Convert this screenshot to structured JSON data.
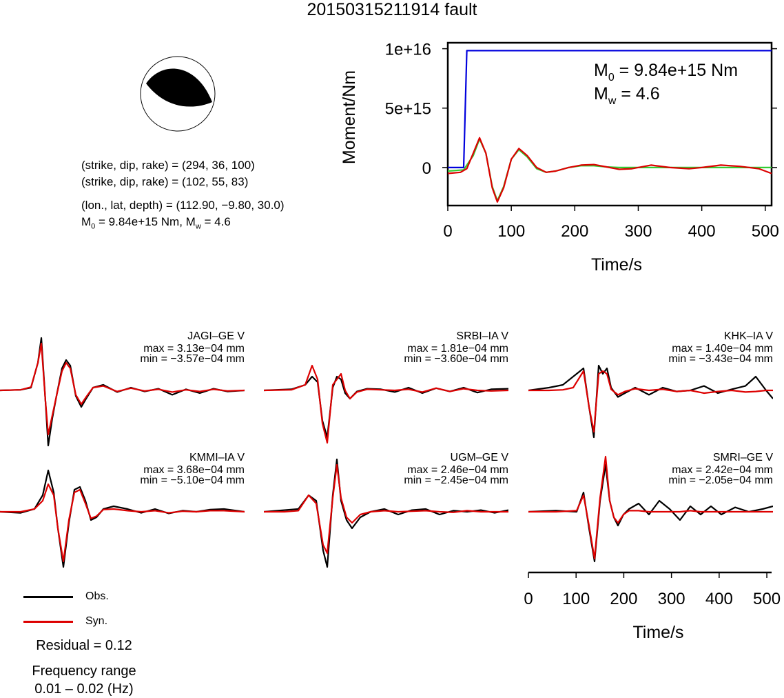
{
  "title": "20150315211914 fault",
  "mechanism": {
    "line1": "(strike, dip, rake) = (294, 36, 100)",
    "line2": "(strike, dip, rake) = (102, 55, 83)",
    "line3": "(lon., lat, depth) = (112.90, −9.80, 30.0)",
    "m0_prefix": "M",
    "m0_sub": "0",
    "m0_rest": " = 9.84e+15 Nm, M",
    "mw_sub": "w",
    "mw_rest": " = 4.6"
  },
  "chart_data": [
    {
      "type": "line",
      "title": "",
      "xlabel": "Time/s",
      "ylabel": "Moment/Nm",
      "xlim": [
        0,
        510
      ],
      "ylim": [
        -3200000000000000.0,
        1.05e+16
      ],
      "xticks": [
        0,
        100,
        200,
        300,
        400,
        500
      ],
      "xtick_labels": [
        "0",
        "100",
        "200",
        "300",
        "400",
        "500"
      ],
      "yticks": [
        0,
        5000000000000000.0,
        1e+16
      ],
      "ytick_labels": [
        "0",
        "5e+15",
        "1e+16"
      ],
      "annotation": {
        "m0_label": "M",
        "m0_sub": "0",
        "m0_value": " = 9.84e+15 Nm",
        "mw_label": "M",
        "mw_sub": "w",
        "mw_value": " = 4.6"
      },
      "series": [
        {
          "color": "#0000dd",
          "x": [
            0,
            25,
            30,
            510
          ],
          "y": [
            0,
            0,
            9840000000000000.0,
            9840000000000000.0
          ]
        },
        {
          "color": "#33cc33",
          "x": [
            0,
            25,
            40,
            50,
            60,
            70,
            78,
            88,
            100,
            112,
            125,
            140,
            155,
            170,
            190,
            210,
            230,
            250,
            270,
            300,
            350,
            400,
            450,
            510
          ],
          "y": [
            -300000000000000.0,
            -200000000000000.0,
            1000000000000000.0,
            2400000000000000.0,
            1200000000000000.0,
            -1600000000000000.0,
            -2800000000000000.0,
            -1600000000000000.0,
            700000000000000.0,
            1500000000000000.0,
            900000000000000.0,
            -100000000000000.0,
            -400000000000000.0,
            -300000000000000.0,
            0,
            150000000000000.0,
            150000000000000.0,
            50000000000000.0,
            0,
            0,
            0,
            0,
            0,
            0
          ]
        },
        {
          "color": "#dd0000",
          "x": [
            0,
            20,
            30,
            40,
            50,
            60,
            70,
            78,
            88,
            100,
            112,
            125,
            140,
            155,
            170,
            190,
            210,
            230,
            250,
            270,
            290,
            320,
            350,
            380,
            400,
            430,
            460,
            490,
            510
          ],
          "y": [
            -500000000000000.0,
            -400000000000000.0,
            -100000000000000.0,
            1200000000000000.0,
            2500000000000000.0,
            1200000000000000.0,
            -1700000000000000.0,
            -2900000000000000.0,
            -1700000000000000.0,
            700000000000000.0,
            1600000000000000.0,
            1000000000000000.0,
            0,
            -400000000000000.0,
            -300000000000000.0,
            0,
            200000000000000.0,
            250000000000000.0,
            50000000000000.0,
            -150000000000000.0,
            -100000000000000.0,
            200000000000000.0,
            0,
            -100000000000000.0,
            0,
            200000000000000.0,
            100000000000000.0,
            -100000000000000.0,
            -500000000000000.0
          ]
        }
      ]
    },
    {
      "type": "line",
      "title": "",
      "xlabel": "Time/s",
      "xlim": [
        0,
        510
      ],
      "xticks": [
        0,
        100,
        200,
        300,
        400,
        500
      ],
      "xtick_labels": [
        "0",
        "100",
        "200",
        "300",
        "400",
        "500"
      ],
      "legend": [
        {
          "name": "Obs.",
          "color": "#000000"
        },
        {
          "name": "Syn.",
          "color": "#dd0000"
        }
      ],
      "residual": "Residual = 0.12",
      "frequency_line1": "Frequency range",
      "frequency_line2": "0.01 – 0.02 (Hz)",
      "stations": [
        {
          "label": "JAGI–GE V",
          "max": "max = 3.13e−04 mm",
          "min": "min = −3.57e−04 mm",
          "obs": {
            "x": [
              0,
              30,
              45,
              55,
              60,
              66,
              70,
              76,
              82,
              90,
              96,
              102,
              110,
              118,
              125,
              135,
              150,
              170,
              190,
              210,
              230,
              250,
              270,
              290,
              310,
              330,
              355
            ],
            "y": [
              0,
              0.01,
              0.05,
              0.5,
              0.95,
              -0.2,
              -1.0,
              -0.5,
              -0.1,
              0.4,
              0.55,
              0.45,
              -0.1,
              -0.3,
              -0.15,
              0.05,
              0.1,
              -0.03,
              0.05,
              -0.02,
              0.03,
              -0.08,
              0.02,
              -0.05,
              0.03,
              -0.02,
              0
            ]
          },
          "syn": {
            "x": [
              0,
              30,
              45,
              55,
              60,
              66,
              70,
              76,
              82,
              90,
              96,
              102,
              110,
              118,
              125,
              135,
              150,
              170,
              190,
              210,
              230,
              250,
              270,
              290,
              310,
              330,
              355
            ],
            "y": [
              0,
              0.01,
              0.06,
              0.5,
              0.85,
              -0.2,
              -0.8,
              -0.45,
              -0.1,
              0.35,
              0.5,
              0.4,
              -0.08,
              -0.25,
              -0.12,
              0.05,
              0.08,
              -0.02,
              0.04,
              -0.01,
              0.02,
              -0.03,
              0.01,
              -0.02,
              0.02,
              -0.01,
              0
            ]
          }
        },
        {
          "label": "SRBI–IA V",
          "max": "max = 1.81e−04 mm",
          "min": "min = −3.60e−04 mm",
          "obs": {
            "x": [
              0,
              40,
              60,
              70,
              78,
              85,
              92,
              100,
              106,
              112,
              118,
              125,
              135,
              150,
              170,
              190,
              210,
              230,
              250,
              270,
              290,
              310,
              330,
              355
            ],
            "y": [
              0,
              0.02,
              0.1,
              0.25,
              0.15,
              -0.55,
              -0.85,
              0.05,
              0.25,
              0.2,
              -0.05,
              -0.15,
              -0.02,
              0.03,
              0.02,
              -0.03,
              0.05,
              -0.05,
              0.04,
              -0.02,
              0.05,
              -0.04,
              0.02,
              0.03
            ]
          },
          "syn": {
            "x": [
              0,
              40,
              60,
              70,
              78,
              85,
              92,
              100,
              106,
              112,
              118,
              125,
              135,
              150,
              170,
              190,
              210,
              230,
              250,
              270,
              290,
              310,
              330,
              355
            ],
            "y": [
              0,
              0.01,
              0.1,
              0.45,
              0.2,
              -0.6,
              -0.95,
              0.1,
              0.2,
              0.3,
              0.0,
              -0.15,
              -0.03,
              0.02,
              0.01,
              0.0,
              0.02,
              -0.03,
              0.04,
              -0.02,
              0.03,
              0.0,
              -0.01,
              0
            ]
          }
        },
        {
          "label": "KHK–IA V",
          "max": "max = 1.40e−04 mm",
          "min": "min = −3.43e−04 mm",
          "obs": {
            "x": [
              0,
              30,
              50,
              65,
              80,
              88,
              95,
              102,
              108,
              114,
              120,
              130,
              140,
              155,
              175,
              195,
              215,
              235,
              255,
              275,
              295,
              315,
              330,
              345,
              355
            ],
            "y": [
              0,
              0.05,
              0.1,
              0.25,
              0.4,
              -0.3,
              -0.85,
              0.45,
              0.3,
              0.4,
              0.05,
              -0.12,
              -0.05,
              0.05,
              -0.08,
              0.05,
              -0.02,
              0.0,
              0.08,
              -0.05,
              0.02,
              0.08,
              0.25,
              0.0,
              -0.15
            ]
          },
          "syn": {
            "x": [
              0,
              30,
              50,
              65,
              80,
              88,
              95,
              102,
              108,
              114,
              120,
              130,
              140,
              155,
              175,
              195,
              215,
              235,
              255,
              275,
              295,
              315,
              330,
              345,
              355
            ],
            "y": [
              0,
              0.0,
              0.01,
              0.05,
              0.35,
              -0.3,
              -0.75,
              0.3,
              0.35,
              0.3,
              0.02,
              -0.08,
              -0.02,
              0.03,
              0.0,
              0.02,
              -0.02,
              0.0,
              -0.05,
              -0.02,
              0.0,
              -0.03,
              -0.02,
              0.0,
              0
            ]
          }
        },
        {
          "label": "KMMI–IA V",
          "max": "max = 3.68e−04 mm",
          "min": "min = −5.10e−04 mm",
          "obs": {
            "x": [
              0,
              30,
              50,
              62,
              70,
              78,
              84,
              92,
              100,
              108,
              116,
              124,
              132,
              140,
              150,
              165,
              185,
              205,
              225,
              245,
              265,
              285,
              305,
              325,
              355
            ],
            "y": [
              0,
              -0.02,
              0.05,
              0.3,
              0.75,
              0.35,
              -0.3,
              -1.0,
              -0.2,
              0.4,
              0.45,
              0.2,
              -0.15,
              -0.1,
              0.05,
              0.1,
              0.05,
              -0.02,
              0.05,
              -0.03,
              0.02,
              0.0,
              0.04,
              0.05,
              0
            ]
          },
          "syn": {
            "x": [
              0,
              30,
              50,
              62,
              70,
              78,
              84,
              92,
              100,
              108,
              116,
              124,
              132,
              140,
              150,
              165,
              185,
              205,
              225,
              245,
              265,
              285,
              305,
              325,
              355
            ],
            "y": [
              0,
              0.0,
              0.05,
              0.2,
              0.5,
              0.3,
              -0.3,
              -0.9,
              -0.15,
              0.35,
              0.4,
              0.15,
              -0.12,
              -0.08,
              0.04,
              0.05,
              0.02,
              0.0,
              0.02,
              -0.02,
              0.01,
              0.0,
              0.02,
              0.02,
              0
            ]
          }
        },
        {
          "label": "UGM–GE V",
          "max": "max = 2.46e−04 mm",
          "min": "min = −2.45e−04 mm",
          "obs": {
            "x": [
              0,
              30,
              50,
              65,
              76,
              86,
              92,
              100,
              106,
              112,
              120,
              128,
              140,
              155,
              175,
              195,
              215,
              235,
              255,
              275,
              295,
              315,
              335,
              355
            ],
            "y": [
              0,
              0.03,
              0.05,
              0.3,
              0.2,
              -0.7,
              -1.0,
              0.3,
              0.95,
              0.2,
              -0.15,
              -0.3,
              -0.1,
              0.0,
              0.05,
              -0.05,
              0.03,
              0.05,
              -0.05,
              0.02,
              0.0,
              0.03,
              -0.02,
              0.03
            ]
          },
          "syn": {
            "x": [
              0,
              30,
              50,
              65,
              76,
              86,
              92,
              100,
              106,
              112,
              120,
              128,
              140,
              155,
              175,
              195,
              215,
              235,
              255,
              275,
              295,
              315,
              335,
              355
            ],
            "y": [
              0,
              0.0,
              0.02,
              0.3,
              0.15,
              -0.6,
              -0.75,
              0.25,
              0.85,
              0.25,
              -0.1,
              -0.2,
              -0.05,
              0.0,
              0.02,
              0.0,
              0.01,
              0.02,
              0.0,
              -0.01,
              0.02,
              0.0,
              0.0,
              0.0
            ]
          }
        },
        {
          "label": "SMRI–GE V",
          "max": "max = 2.42e−04 mm",
          "min": "min = −2.05e−04 mm",
          "obs": {
            "x": [
              0,
              40,
              70,
              80,
              88,
              96,
              104,
              112,
              118,
              124,
              130,
              138,
              146,
              160,
              175,
              190,
              205,
              220,
              235,
              250,
              265,
              280,
              300,
              320,
              340,
              355
            ],
            "y": [
              0,
              0.02,
              0.0,
              0.35,
              -0.3,
              -0.9,
              0.2,
              0.85,
              0.2,
              -0.1,
              -0.25,
              -0.05,
              0.05,
              0.15,
              -0.05,
              0.2,
              0.05,
              -0.15,
              0.1,
              -0.05,
              0.1,
              -0.05,
              0.08,
              0.0,
              0.05,
              0.1
            ]
          },
          "syn": {
            "x": [
              0,
              40,
              70,
              80,
              88,
              96,
              104,
              112,
              118,
              124,
              130,
              138,
              146,
              160,
              175,
              190,
              205,
              220,
              235,
              250,
              265,
              280,
              300,
              320,
              340,
              355
            ],
            "y": [
              0,
              0.0,
              0.02,
              0.3,
              -0.25,
              -0.85,
              0.25,
              1.0,
              0.2,
              -0.1,
              -0.2,
              -0.05,
              0.02,
              0.02,
              0.0,
              0.0,
              0.0,
              0.0,
              0.02,
              0.0,
              0.0,
              0.0,
              0.0,
              0.0,
              0.0,
              0.0
            ]
          }
        }
      ]
    }
  ]
}
